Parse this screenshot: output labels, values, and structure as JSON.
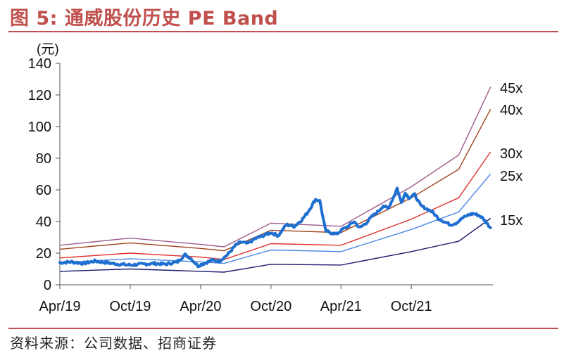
{
  "figure": {
    "title": "图 5:  通威股份历史 PE Band",
    "source": "资料来源：公司数据、招商证券"
  },
  "chart_data": {
    "type": "line",
    "ylabel": "(元)",
    "ylim": [
      0,
      140
    ],
    "yticks": [
      "0",
      "20",
      "40",
      "60",
      "80",
      "100",
      "120",
      "140"
    ],
    "xticks": [
      "Apr/19",
      "Oct/19",
      "Apr/20",
      "Oct/20",
      "Apr/21",
      "Oct/21"
    ],
    "x_range": [
      "2019-04-01",
      "2022-05-01"
    ],
    "band_labels": [
      "45x",
      "40x",
      "30x",
      "25x",
      "15x"
    ],
    "colors": {
      "price": "#1f6fd0",
      "45x": "#9e5a8a",
      "40x": "#a0401c",
      "30x": "#e03030",
      "25x": "#4a86e8",
      "15x": "#1a1a6e"
    },
    "series": [
      {
        "name": "45x",
        "x": [
          "2019-04-01",
          "2019-10-01",
          "2020-04-01",
          "2020-06-01",
          "2020-10-01",
          "2021-04-01",
          "2021-10-01",
          "2022-02-01",
          "2022-04-25"
        ],
        "values": [
          25,
          29.5,
          25.5,
          24,
          39,
          37,
          62,
          82,
          125
        ]
      },
      {
        "name": "40x",
        "x": [
          "2019-04-01",
          "2019-10-01",
          "2020-04-01",
          "2020-06-01",
          "2020-10-01",
          "2021-04-01",
          "2021-10-01",
          "2022-02-01",
          "2022-04-25"
        ],
        "values": [
          22.5,
          26.5,
          23,
          21.5,
          34.5,
          33,
          55,
          73,
          111
        ]
      },
      {
        "name": "30x",
        "x": [
          "2019-04-01",
          "2019-10-01",
          "2020-04-01",
          "2020-06-01",
          "2020-10-01",
          "2021-04-01",
          "2021-10-01",
          "2022-02-01",
          "2022-04-25"
        ],
        "values": [
          17,
          20,
          17.5,
          16,
          26,
          25,
          41.5,
          55,
          84
        ]
      },
      {
        "name": "25x",
        "x": [
          "2019-04-01",
          "2019-10-01",
          "2020-04-01",
          "2020-06-01",
          "2020-10-01",
          "2021-04-01",
          "2021-10-01",
          "2022-02-01",
          "2022-04-25"
        ],
        "values": [
          14,
          16.5,
          14.5,
          13.5,
          22,
          21,
          35,
          46,
          70
        ]
      },
      {
        "name": "15x",
        "x": [
          "2019-04-01",
          "2019-10-01",
          "2020-04-01",
          "2020-06-01",
          "2020-10-01",
          "2021-04-01",
          "2021-10-01",
          "2022-02-01",
          "2022-04-25"
        ],
        "values": [
          8.5,
          10,
          8.5,
          8,
          13,
          12.5,
          21,
          27.5,
          42
        ]
      },
      {
        "name": "",
        "x": [
          "2019-04-01",
          "2019-05-01",
          "2019-06-01",
          "2019-07-01",
          "2019-08-01",
          "2019-09-01",
          "2019-10-01",
          "2019-11-01",
          "2019-12-01",
          "2020-01-01",
          "2020-02-01",
          "2020-02-20",
          "2020-03-05",
          "2020-03-25",
          "2020-04-15",
          "2020-05-01",
          "2020-05-20",
          "2020-06-10",
          "2020-07-01",
          "2020-07-15",
          "2020-08-01",
          "2020-08-20",
          "2020-09-10",
          "2020-10-01",
          "2020-10-20",
          "2020-11-10",
          "2020-12-01",
          "2020-12-20",
          "2021-01-05",
          "2021-01-15",
          "2021-01-25",
          "2021-02-05",
          "2021-02-20",
          "2021-03-05",
          "2021-03-20",
          "2021-04-05",
          "2021-04-20",
          "2021-05-05",
          "2021-05-20",
          "2021-06-05",
          "2021-06-20",
          "2021-07-05",
          "2021-07-20",
          "2021-08-01",
          "2021-08-15",
          "2021-08-25",
          "2021-09-05",
          "2021-09-15",
          "2021-09-25",
          "2021-10-10",
          "2021-10-25",
          "2021-11-10",
          "2021-11-25",
          "2021-12-10",
          "2021-12-25",
          "2022-01-10",
          "2022-01-25",
          "2022-02-10",
          "2022-02-25",
          "2022-03-10",
          "2022-03-25",
          "2022-04-05",
          "2022-04-15",
          "2022-04-25"
        ],
        "values": [
          14,
          14.5,
          13.5,
          15,
          14,
          13,
          12.5,
          13,
          13.5,
          13,
          14.5,
          19,
          17,
          12,
          14,
          15.5,
          15,
          19,
          25,
          27,
          26,
          29,
          31,
          33,
          31,
          38,
          37,
          41,
          46,
          50,
          54,
          53,
          34,
          33,
          32,
          35,
          37,
          40,
          36,
          39,
          43,
          46,
          50,
          48,
          55,
          61,
          52,
          58,
          55,
          57,
          50,
          48,
          46,
          42,
          40,
          38,
          39,
          42,
          44,
          45,
          44,
          42,
          39,
          36
        ]
      }
    ]
  }
}
